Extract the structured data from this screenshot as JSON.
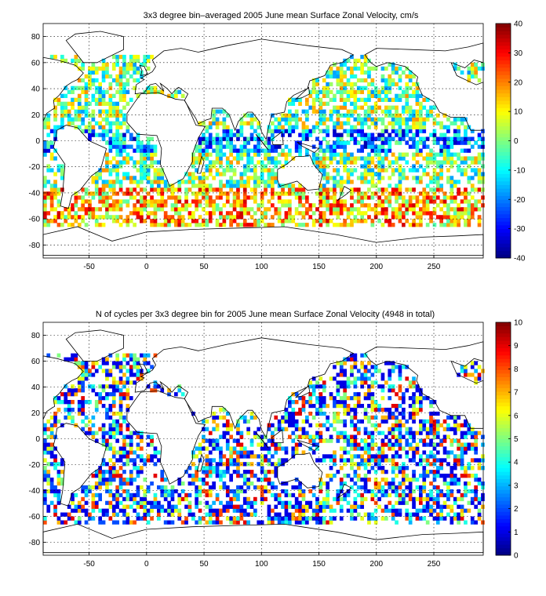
{
  "chart_data": [
    {
      "type": "heatmap",
      "title": "3x3 degree bin–averaged 2005 June mean Surface Zonal Velocity, cm/s",
      "xlabel": "",
      "ylabel": "",
      "xlim": [
        -90,
        293
      ],
      "ylim": [
        -90,
        90
      ],
      "x_ticks": [
        -50,
        0,
        50,
        100,
        150,
        200,
        250
      ],
      "y_ticks": [
        -80,
        -60,
        -40,
        -20,
        0,
        20,
        40,
        60,
        80
      ],
      "grid": true,
      "colorbar": {
        "min": -40,
        "max": 40,
        "ticks": [
          -40,
          -30,
          -20,
          -10,
          0,
          10,
          20,
          30,
          40
        ],
        "colormap": "jet"
      },
      "bin_size_deg": 3,
      "fill_fraction": 0.62,
      "seed": 11
    },
    {
      "type": "heatmap",
      "title": "N of cycles per 3x3 degree bin for 2005 June mean Surface Zonal Velocity (4948 in total)",
      "xlabel": "",
      "ylabel": "",
      "xlim": [
        -90,
        293
      ],
      "ylim": [
        -90,
        90
      ],
      "x_ticks": [
        -50,
        0,
        50,
        100,
        150,
        200,
        250
      ],
      "y_ticks": [
        -80,
        -60,
        -40,
        -20,
        0,
        20,
        40,
        60,
        80
      ],
      "grid": true,
      "colorbar": {
        "min": 0,
        "max": 10,
        "ticks": [
          0,
          1,
          2,
          3,
          4,
          5,
          6,
          7,
          8,
          9,
          10
        ],
        "colormap": "jet"
      },
      "bin_size_deg": 3,
      "fill_fraction": 0.55,
      "seed": 29
    }
  ]
}
